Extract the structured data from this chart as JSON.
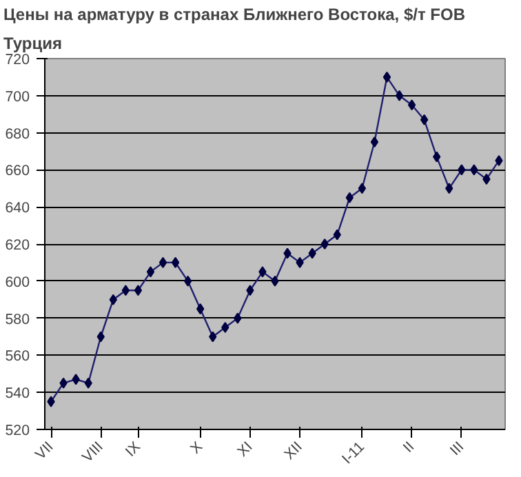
{
  "chart_data": {
    "type": "line",
    "title": "Цены на арматуру в странах Ближнего Востока, $/т FOB",
    "subtitle": "Турция",
    "categories": [
      "VII",
      null,
      null,
      null,
      "VIII",
      null,
      null,
      "IX",
      null,
      null,
      null,
      null,
      "X",
      null,
      null,
      null,
      "XI",
      null,
      null,
      null,
      "XII",
      null,
      null,
      null,
      null,
      "I-11",
      null,
      null,
      null,
      "II",
      null,
      null,
      null,
      "III",
      null,
      null,
      null
    ],
    "series": [
      {
        "color": "#1f1f6e",
        "values": [
          535,
          545,
          547,
          545,
          570,
          590,
          595,
          595,
          605,
          610,
          610,
          600,
          585,
          570,
          575,
          580,
          595,
          605,
          600,
          615,
          610,
          615,
          620,
          625,
          645,
          650,
          675,
          710,
          700,
          695,
          687,
          667,
          650,
          660,
          660,
          655,
          665
        ]
      }
    ],
    "ylim": [
      520,
      720
    ],
    "yticks": [
      520,
      540,
      560,
      580,
      600,
      620,
      640,
      660,
      680,
      700,
      720
    ],
    "grid": "y",
    "marker": "diamond",
    "line_style": "solid"
  }
}
